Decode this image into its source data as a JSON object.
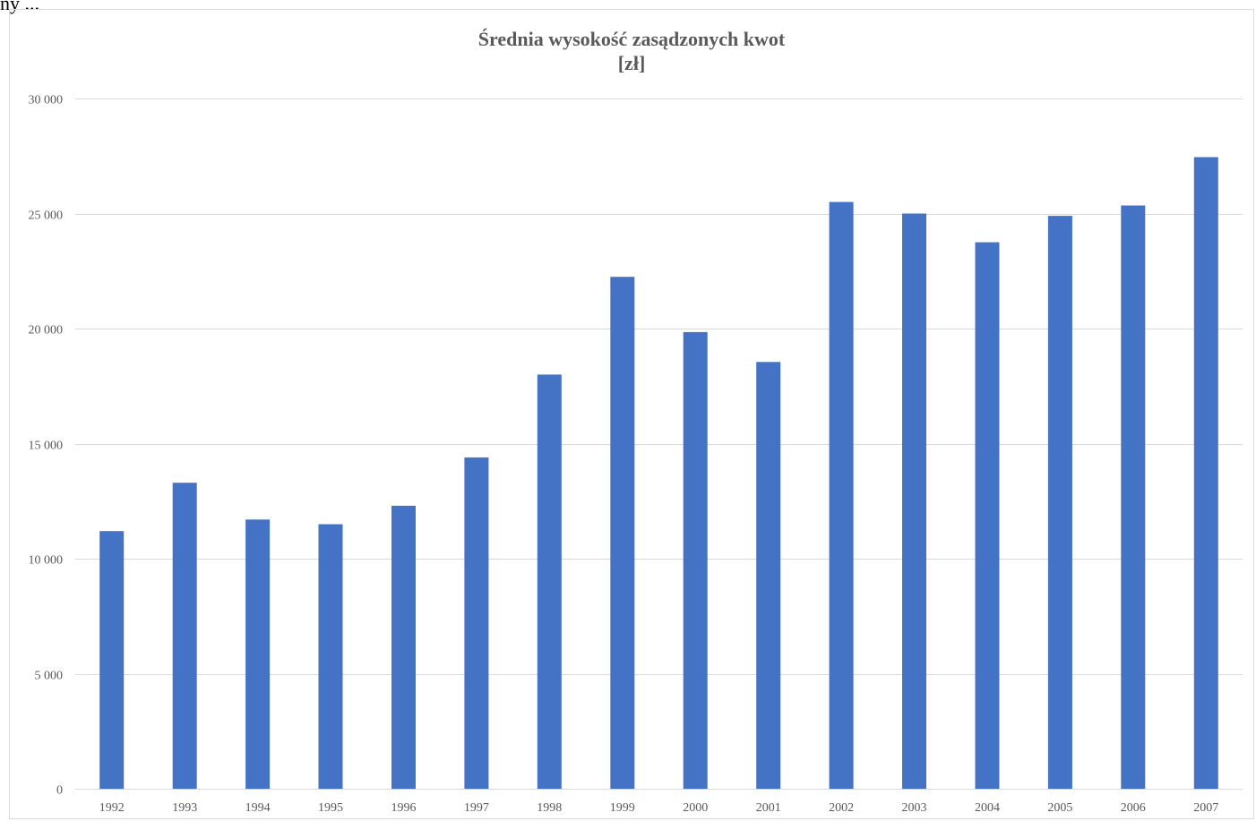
{
  "header_fragment": "ny ...",
  "chart_data": {
    "type": "bar",
    "title": "Średnia wysokość zasądzonych kwot",
    "subtitle": "[zł]",
    "categories": [
      "1992",
      "1993",
      "1994",
      "1995",
      "1996",
      "1997",
      "1998",
      "1999",
      "2000",
      "2001",
      "2002",
      "2003",
      "2004",
      "2005",
      "2006",
      "2007"
    ],
    "values": [
      11200,
      13300,
      11700,
      11500,
      12300,
      14400,
      18000,
      22250,
      19850,
      18550,
      25500,
      25000,
      23750,
      24900,
      25350,
      27450
    ],
    "ylim": [
      0,
      30000
    ],
    "yticks": [
      0,
      5000,
      10000,
      15000,
      20000,
      25000,
      30000
    ],
    "ytick_labels": [
      "0",
      "5 000",
      "10 000",
      "15 000",
      "20 000",
      "25 000",
      "30 000"
    ],
    "xlabel": "",
    "ylabel": "",
    "grid": true,
    "bar_color": "#4472c4",
    "grid_color": "#d9d9d9"
  }
}
